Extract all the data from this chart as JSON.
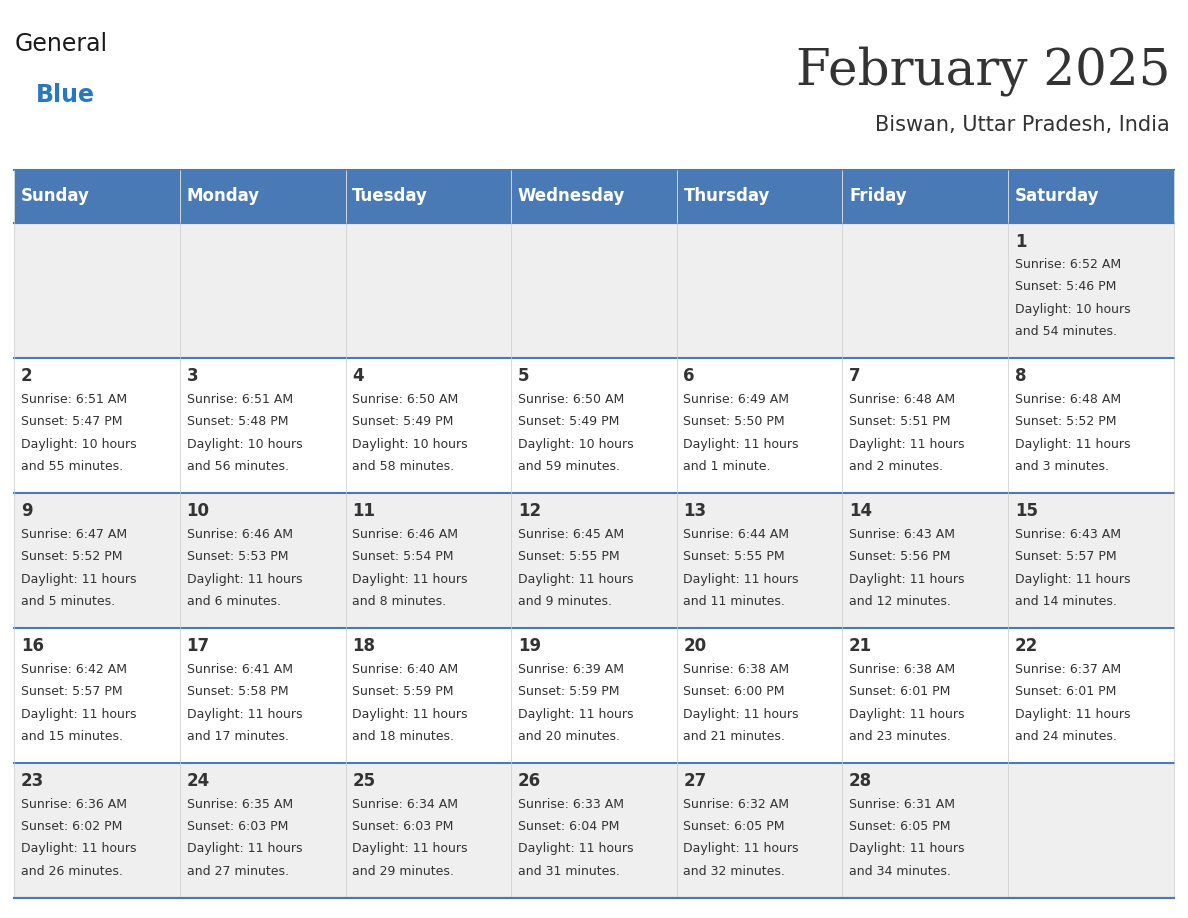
{
  "title": "February 2025",
  "subtitle": "Biswan, Uttar Pradesh, India",
  "header_bg": "#4a7ab5",
  "header_text_color": "#ffffff",
  "cell_bg_light": "#efefef",
  "cell_bg_white": "#ffffff",
  "border_color": "#4a7ab5",
  "text_color": "#333333",
  "days_of_week": [
    "Sunday",
    "Monday",
    "Tuesday",
    "Wednesday",
    "Thursday",
    "Friday",
    "Saturday"
  ],
  "weeks": [
    [
      {
        "day": "",
        "info": ""
      },
      {
        "day": "",
        "info": ""
      },
      {
        "day": "",
        "info": ""
      },
      {
        "day": "",
        "info": ""
      },
      {
        "day": "",
        "info": ""
      },
      {
        "day": "",
        "info": ""
      },
      {
        "day": "1",
        "info": "Sunrise: 6:52 AM\nSunset: 5:46 PM\nDaylight: 10 hours\nand 54 minutes."
      }
    ],
    [
      {
        "day": "2",
        "info": "Sunrise: 6:51 AM\nSunset: 5:47 PM\nDaylight: 10 hours\nand 55 minutes."
      },
      {
        "day": "3",
        "info": "Sunrise: 6:51 AM\nSunset: 5:48 PM\nDaylight: 10 hours\nand 56 minutes."
      },
      {
        "day": "4",
        "info": "Sunrise: 6:50 AM\nSunset: 5:49 PM\nDaylight: 10 hours\nand 58 minutes."
      },
      {
        "day": "5",
        "info": "Sunrise: 6:50 AM\nSunset: 5:49 PM\nDaylight: 10 hours\nand 59 minutes."
      },
      {
        "day": "6",
        "info": "Sunrise: 6:49 AM\nSunset: 5:50 PM\nDaylight: 11 hours\nand 1 minute."
      },
      {
        "day": "7",
        "info": "Sunrise: 6:48 AM\nSunset: 5:51 PM\nDaylight: 11 hours\nand 2 minutes."
      },
      {
        "day": "8",
        "info": "Sunrise: 6:48 AM\nSunset: 5:52 PM\nDaylight: 11 hours\nand 3 minutes."
      }
    ],
    [
      {
        "day": "9",
        "info": "Sunrise: 6:47 AM\nSunset: 5:52 PM\nDaylight: 11 hours\nand 5 minutes."
      },
      {
        "day": "10",
        "info": "Sunrise: 6:46 AM\nSunset: 5:53 PM\nDaylight: 11 hours\nand 6 minutes."
      },
      {
        "day": "11",
        "info": "Sunrise: 6:46 AM\nSunset: 5:54 PM\nDaylight: 11 hours\nand 8 minutes."
      },
      {
        "day": "12",
        "info": "Sunrise: 6:45 AM\nSunset: 5:55 PM\nDaylight: 11 hours\nand 9 minutes."
      },
      {
        "day": "13",
        "info": "Sunrise: 6:44 AM\nSunset: 5:55 PM\nDaylight: 11 hours\nand 11 minutes."
      },
      {
        "day": "14",
        "info": "Sunrise: 6:43 AM\nSunset: 5:56 PM\nDaylight: 11 hours\nand 12 minutes."
      },
      {
        "day": "15",
        "info": "Sunrise: 6:43 AM\nSunset: 5:57 PM\nDaylight: 11 hours\nand 14 minutes."
      }
    ],
    [
      {
        "day": "16",
        "info": "Sunrise: 6:42 AM\nSunset: 5:57 PM\nDaylight: 11 hours\nand 15 minutes."
      },
      {
        "day": "17",
        "info": "Sunrise: 6:41 AM\nSunset: 5:58 PM\nDaylight: 11 hours\nand 17 minutes."
      },
      {
        "day": "18",
        "info": "Sunrise: 6:40 AM\nSunset: 5:59 PM\nDaylight: 11 hours\nand 18 minutes."
      },
      {
        "day": "19",
        "info": "Sunrise: 6:39 AM\nSunset: 5:59 PM\nDaylight: 11 hours\nand 20 minutes."
      },
      {
        "day": "20",
        "info": "Sunrise: 6:38 AM\nSunset: 6:00 PM\nDaylight: 11 hours\nand 21 minutes."
      },
      {
        "day": "21",
        "info": "Sunrise: 6:38 AM\nSunset: 6:01 PM\nDaylight: 11 hours\nand 23 minutes."
      },
      {
        "day": "22",
        "info": "Sunrise: 6:37 AM\nSunset: 6:01 PM\nDaylight: 11 hours\nand 24 minutes."
      }
    ],
    [
      {
        "day": "23",
        "info": "Sunrise: 6:36 AM\nSunset: 6:02 PM\nDaylight: 11 hours\nand 26 minutes."
      },
      {
        "day": "24",
        "info": "Sunrise: 6:35 AM\nSunset: 6:03 PM\nDaylight: 11 hours\nand 27 minutes."
      },
      {
        "day": "25",
        "info": "Sunrise: 6:34 AM\nSunset: 6:03 PM\nDaylight: 11 hours\nand 29 minutes."
      },
      {
        "day": "26",
        "info": "Sunrise: 6:33 AM\nSunset: 6:04 PM\nDaylight: 11 hours\nand 31 minutes."
      },
      {
        "day": "27",
        "info": "Sunrise: 6:32 AM\nSunset: 6:05 PM\nDaylight: 11 hours\nand 32 minutes."
      },
      {
        "day": "28",
        "info": "Sunrise: 6:31 AM\nSunset: 6:05 PM\nDaylight: 11 hours\nand 34 minutes."
      },
      {
        "day": "",
        "info": ""
      }
    ]
  ],
  "logo_general_color": "#1a1a1a",
  "logo_blue_color": "#2878c0",
  "logo_triangle_color": "#2878c0",
  "title_fontsize": 36,
  "subtitle_fontsize": 15,
  "header_fontsize": 12,
  "day_num_fontsize": 12,
  "info_fontsize": 9
}
